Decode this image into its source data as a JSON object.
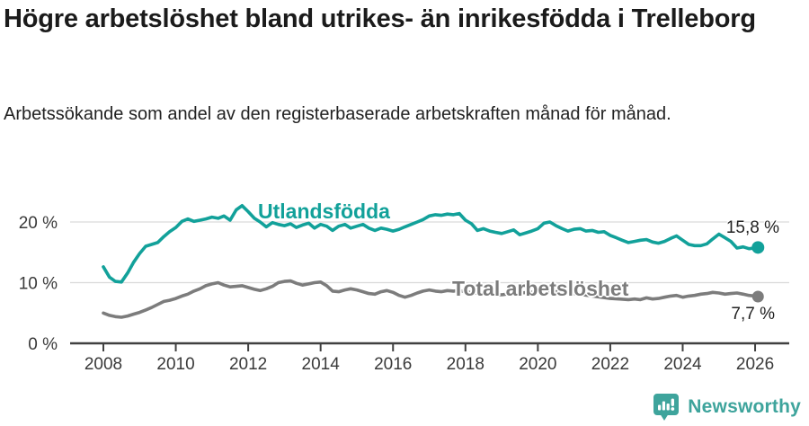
{
  "header": {
    "title": "Högre arbetslöshet bland utrikes- än inrikesfödda i Trelleborg",
    "subtitle": "Arbetssökande som andel av den registerbaserade arbetskraften månad för månad."
  },
  "footer": {
    "brand": "Newsworthy"
  },
  "colors": {
    "foreign_series": "#12a19a",
    "total_series": "#7c7c7c",
    "grid": "#d9d9d9",
    "axis": "#404040",
    "tick_text": "#3a3a3a",
    "text": "#222222",
    "brand": "#3ea49c"
  },
  "chart_data": {
    "type": "line",
    "title": "Högre arbetslöshet bland utrikes- än inrikesfödda i Trelleborg",
    "subtitle": "Arbetssökande som andel av den registerbaserade arbetskraften månad för månad.",
    "xlabel": "",
    "ylabel": "",
    "grid": "horizontal",
    "x_axis": {
      "ticks": [
        2008,
        2010,
        2012,
        2014,
        2016,
        2018,
        2020,
        2022,
        2024,
        2026
      ],
      "range": [
        2008,
        2026.2
      ]
    },
    "y_axis": {
      "ticks": [
        0,
        10,
        20
      ],
      "suffix": " %",
      "range": [
        0,
        23.5
      ]
    },
    "series": [
      {
        "name": "Utlandsfödda",
        "color": "#12a19a",
        "end_label": "15,8 %",
        "end_value": 15.8,
        "points": [
          [
            2008.0,
            12.6
          ],
          [
            2008.17,
            10.9
          ],
          [
            2008.33,
            10.2
          ],
          [
            2008.5,
            10.1
          ],
          [
            2008.67,
            11.6
          ],
          [
            2008.83,
            13.3
          ],
          [
            2009.0,
            14.8
          ],
          [
            2009.17,
            16.0
          ],
          [
            2009.33,
            16.3
          ],
          [
            2009.5,
            16.6
          ],
          [
            2009.67,
            17.6
          ],
          [
            2009.83,
            18.4
          ],
          [
            2010.0,
            19.1
          ],
          [
            2010.17,
            20.1
          ],
          [
            2010.33,
            20.5
          ],
          [
            2010.5,
            20.1
          ],
          [
            2010.67,
            20.3
          ],
          [
            2010.83,
            20.5
          ],
          [
            2011.0,
            20.8
          ],
          [
            2011.17,
            20.6
          ],
          [
            2011.33,
            21.0
          ],
          [
            2011.5,
            20.3
          ],
          [
            2011.67,
            22.0
          ],
          [
            2011.83,
            22.7
          ],
          [
            2012.0,
            21.7
          ],
          [
            2012.17,
            20.6
          ],
          [
            2012.33,
            20.0
          ],
          [
            2012.5,
            19.2
          ],
          [
            2012.67,
            19.9
          ],
          [
            2012.83,
            19.6
          ],
          [
            2013.0,
            19.4
          ],
          [
            2013.17,
            19.7
          ],
          [
            2013.33,
            19.1
          ],
          [
            2013.5,
            19.5
          ],
          [
            2013.67,
            19.8
          ],
          [
            2013.83,
            19.0
          ],
          [
            2014.0,
            19.6
          ],
          [
            2014.17,
            19.3
          ],
          [
            2014.33,
            18.6
          ],
          [
            2014.5,
            19.3
          ],
          [
            2014.67,
            19.6
          ],
          [
            2014.83,
            19.0
          ],
          [
            2015.0,
            19.3
          ],
          [
            2015.17,
            19.6
          ],
          [
            2015.33,
            19.0
          ],
          [
            2015.5,
            18.6
          ],
          [
            2015.67,
            19.0
          ],
          [
            2015.83,
            18.8
          ],
          [
            2016.0,
            18.5
          ],
          [
            2016.17,
            18.8
          ],
          [
            2016.33,
            19.2
          ],
          [
            2016.5,
            19.6
          ],
          [
            2016.67,
            20.0
          ],
          [
            2016.83,
            20.4
          ],
          [
            2017.0,
            21.0
          ],
          [
            2017.17,
            21.2
          ],
          [
            2017.33,
            21.1
          ],
          [
            2017.5,
            21.3
          ],
          [
            2017.67,
            21.2
          ],
          [
            2017.83,
            21.4
          ],
          [
            2018.0,
            20.3
          ],
          [
            2018.17,
            19.7
          ],
          [
            2018.33,
            18.6
          ],
          [
            2018.5,
            18.9
          ],
          [
            2018.67,
            18.5
          ],
          [
            2018.83,
            18.3
          ],
          [
            2019.0,
            18.1
          ],
          [
            2019.17,
            18.4
          ],
          [
            2019.33,
            18.7
          ],
          [
            2019.5,
            17.9
          ],
          [
            2019.67,
            18.2
          ],
          [
            2019.83,
            18.5
          ],
          [
            2020.0,
            18.9
          ],
          [
            2020.17,
            19.8
          ],
          [
            2020.33,
            20.0
          ],
          [
            2020.5,
            19.4
          ],
          [
            2020.67,
            18.9
          ],
          [
            2020.83,
            18.5
          ],
          [
            2021.0,
            18.8
          ],
          [
            2021.17,
            18.9
          ],
          [
            2021.33,
            18.5
          ],
          [
            2021.5,
            18.6
          ],
          [
            2021.67,
            18.3
          ],
          [
            2021.83,
            18.4
          ],
          [
            2022.0,
            17.8
          ],
          [
            2022.17,
            17.4
          ],
          [
            2022.33,
            17.0
          ],
          [
            2022.5,
            16.6
          ],
          [
            2022.67,
            16.8
          ],
          [
            2022.83,
            17.0
          ],
          [
            2023.0,
            17.1
          ],
          [
            2023.17,
            16.7
          ],
          [
            2023.33,
            16.5
          ],
          [
            2023.5,
            16.8
          ],
          [
            2023.67,
            17.3
          ],
          [
            2023.83,
            17.7
          ],
          [
            2024.0,
            17.0
          ],
          [
            2024.17,
            16.3
          ],
          [
            2024.33,
            16.1
          ],
          [
            2024.5,
            16.1
          ],
          [
            2024.67,
            16.4
          ],
          [
            2024.83,
            17.2
          ],
          [
            2025.0,
            18.0
          ],
          [
            2025.17,
            17.4
          ],
          [
            2025.33,
            16.8
          ],
          [
            2025.5,
            15.7
          ],
          [
            2025.67,
            15.9
          ],
          [
            2025.83,
            15.6
          ],
          [
            2026.0,
            15.7
          ],
          [
            2026.08,
            15.8
          ]
        ]
      },
      {
        "name": "Total arbetslöshet",
        "color": "#7c7c7c",
        "end_label": "7,7 %",
        "end_value": 7.7,
        "points": [
          [
            2008.0,
            5.0
          ],
          [
            2008.17,
            4.6
          ],
          [
            2008.33,
            4.4
          ],
          [
            2008.5,
            4.3
          ],
          [
            2008.67,
            4.5
          ],
          [
            2008.83,
            4.8
          ],
          [
            2009.0,
            5.1
          ],
          [
            2009.17,
            5.5
          ],
          [
            2009.33,
            5.9
          ],
          [
            2009.5,
            6.4
          ],
          [
            2009.67,
            6.9
          ],
          [
            2009.83,
            7.1
          ],
          [
            2010.0,
            7.4
          ],
          [
            2010.17,
            7.8
          ],
          [
            2010.33,
            8.1
          ],
          [
            2010.5,
            8.6
          ],
          [
            2010.67,
            9.0
          ],
          [
            2010.83,
            9.5
          ],
          [
            2011.0,
            9.8
          ],
          [
            2011.17,
            10.0
          ],
          [
            2011.33,
            9.6
          ],
          [
            2011.5,
            9.3
          ],
          [
            2011.67,
            9.4
          ],
          [
            2011.83,
            9.5
          ],
          [
            2012.0,
            9.2
          ],
          [
            2012.17,
            8.9
          ],
          [
            2012.33,
            8.7
          ],
          [
            2012.5,
            9.0
          ],
          [
            2012.67,
            9.4
          ],
          [
            2012.83,
            10.0
          ],
          [
            2013.0,
            10.2
          ],
          [
            2013.17,
            10.3
          ],
          [
            2013.33,
            9.9
          ],
          [
            2013.5,
            9.6
          ],
          [
            2013.67,
            9.8
          ],
          [
            2013.83,
            10.0
          ],
          [
            2014.0,
            10.1
          ],
          [
            2014.17,
            9.5
          ],
          [
            2014.33,
            8.6
          ],
          [
            2014.5,
            8.5
          ],
          [
            2014.67,
            8.8
          ],
          [
            2014.83,
            9.0
          ],
          [
            2015.0,
            8.8
          ],
          [
            2015.17,
            8.5
          ],
          [
            2015.33,
            8.2
          ],
          [
            2015.5,
            8.1
          ],
          [
            2015.67,
            8.5
          ],
          [
            2015.83,
            8.7
          ],
          [
            2016.0,
            8.4
          ],
          [
            2016.17,
            7.9
          ],
          [
            2016.33,
            7.6
          ],
          [
            2016.5,
            7.9
          ],
          [
            2016.67,
            8.3
          ],
          [
            2016.83,
            8.6
          ],
          [
            2017.0,
            8.8
          ],
          [
            2017.17,
            8.6
          ],
          [
            2017.33,
            8.5
          ],
          [
            2017.5,
            8.7
          ],
          [
            2017.67,
            8.6
          ],
          [
            2017.83,
            8.7
          ],
          [
            2018.0,
            8.5
          ],
          [
            2018.25,
            8.3
          ],
          [
            2018.5,
            8.2
          ],
          [
            2018.75,
            8.1
          ],
          [
            2019.0,
            8.0
          ],
          [
            2019.25,
            8.2
          ],
          [
            2019.5,
            8.3
          ],
          [
            2019.75,
            8.4
          ],
          [
            2020.0,
            8.5
          ],
          [
            2020.25,
            8.6
          ],
          [
            2020.5,
            8.5
          ],
          [
            2020.75,
            8.4
          ],
          [
            2021.0,
            8.2
          ],
          [
            2021.25,
            8.0
          ],
          [
            2021.5,
            7.8
          ],
          [
            2021.75,
            7.6
          ],
          [
            2022.0,
            7.4
          ],
          [
            2022.25,
            7.3
          ],
          [
            2022.5,
            7.2
          ],
          [
            2022.67,
            7.3
          ],
          [
            2022.83,
            7.2
          ],
          [
            2023.0,
            7.5
          ],
          [
            2023.17,
            7.3
          ],
          [
            2023.33,
            7.4
          ],
          [
            2023.5,
            7.6
          ],
          [
            2023.67,
            7.8
          ],
          [
            2023.83,
            7.9
          ],
          [
            2024.0,
            7.6
          ],
          [
            2024.17,
            7.8
          ],
          [
            2024.33,
            7.9
          ],
          [
            2024.5,
            8.1
          ],
          [
            2024.67,
            8.2
          ],
          [
            2024.83,
            8.4
          ],
          [
            2025.0,
            8.3
          ],
          [
            2025.17,
            8.1
          ],
          [
            2025.33,
            8.2
          ],
          [
            2025.5,
            8.3
          ],
          [
            2025.67,
            8.1
          ],
          [
            2025.83,
            7.9
          ],
          [
            2026.0,
            7.8
          ],
          [
            2026.08,
            7.7
          ]
        ]
      }
    ],
    "legend": "inline-labels"
  }
}
